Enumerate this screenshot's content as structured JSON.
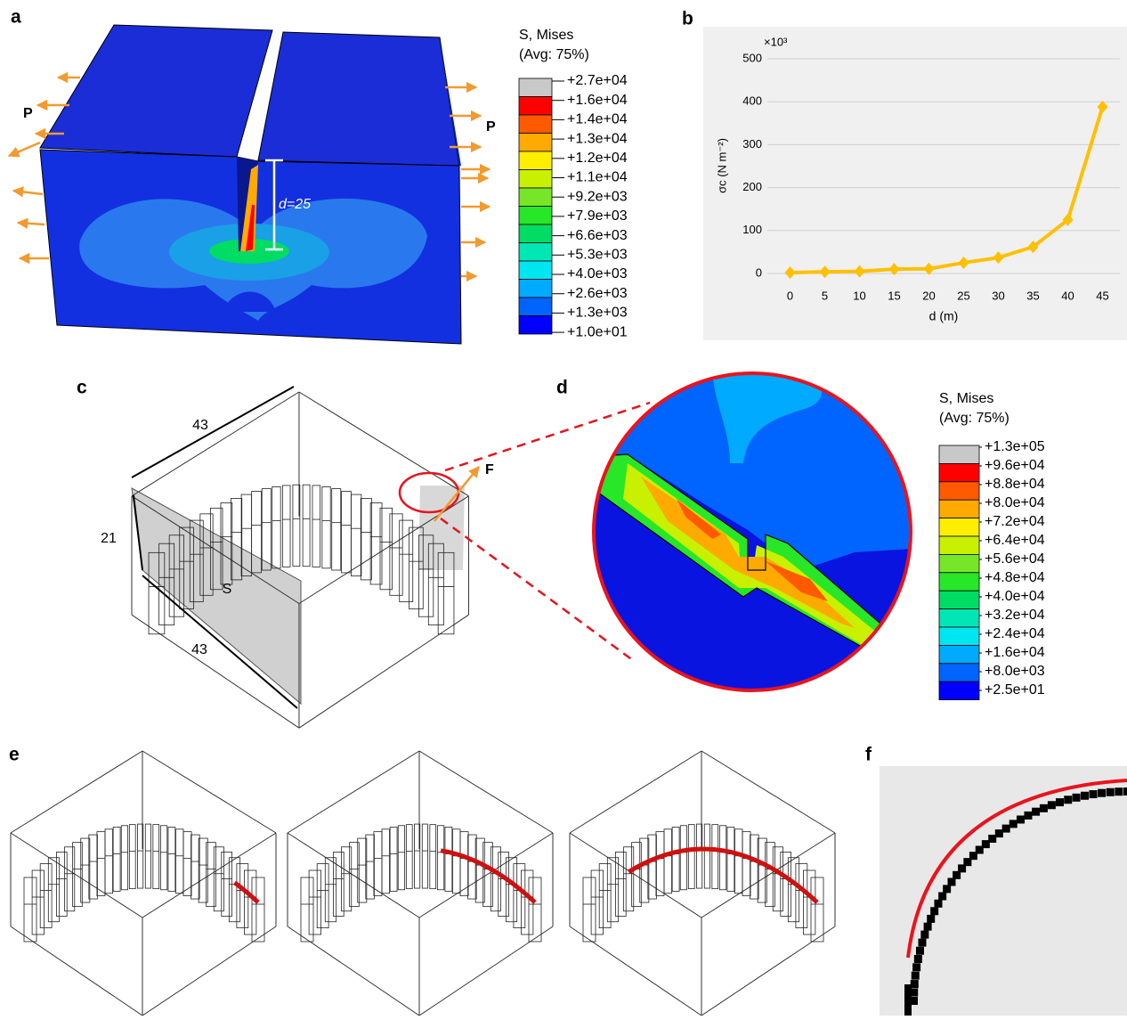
{
  "panel_labels": [
    "a",
    "b",
    "c",
    "d",
    "e",
    "f"
  ],
  "panel_a": {
    "load_labels": [
      "P",
      "P"
    ],
    "depth_label": "d=25",
    "legend": {
      "title": "S, Mises",
      "subtitle": "(Avg: 75%)",
      "labels": [
        "+2.7e+04",
        "+1.6e+04",
        "+1.4e+04",
        "+1.3e+04",
        "+1.2e+04",
        "+1.1e+04",
        "+9.2e+03",
        "+7.9e+03",
        "+6.6e+03",
        "+5.3e+03",
        "+4.0e+03",
        "+2.6e+03",
        "+1.3e+03",
        "+1.0e+01"
      ],
      "colors": [
        "#c8c8c8",
        "#ff0000",
        "#ff5a00",
        "#ffaa00",
        "#ffee00",
        "#c8f000",
        "#78e628",
        "#28e628",
        "#00dc64",
        "#00e6b4",
        "#00e6f0",
        "#00aaff",
        "#0064ff",
        "#0000ff"
      ]
    }
  },
  "chart_data": {
    "type": "line",
    "ylabel": "σc (N m⁻²)",
    "xlabel": "d (m)",
    "multiplier": "×10³",
    "categories": [
      "0",
      "5",
      "10",
      "15",
      "20",
      "25",
      "30",
      "35",
      "40",
      "45"
    ],
    "series": [
      {
        "color": "#ffc000",
        "values": [
          2,
          4,
          5,
          10,
          11,
          25,
          37,
          62,
          125,
          388
        ]
      }
    ],
    "ylim": [
      0,
      500
    ],
    "yticks": [
      0,
      100,
      200,
      300,
      400,
      500
    ],
    "grid": true
  },
  "panel_c": {
    "labels": [
      "43",
      "21",
      "43",
      "S",
      "F"
    ]
  },
  "panel_d": {
    "legend": {
      "title": "S, Mises",
      "subtitle": "(Avg: 75%)",
      "labels": [
        "+1.3e+05",
        "+9.6e+04",
        "+8.8e+04",
        "+8.0e+04",
        "+7.2e+04",
        "+6.4e+04",
        "+5.6e+04",
        "+4.8e+04",
        "+4.0e+04",
        "+3.2e+04",
        "+2.4e+04",
        "+1.6e+04",
        "+8.0e+03",
        "+2.5e+01"
      ],
      "colors": [
        "#c8c8c8",
        "#ff0000",
        "#ff5a00",
        "#ffaa00",
        "#ffee00",
        "#c8f000",
        "#78e628",
        "#28e628",
        "#00dc64",
        "#00e6b4",
        "#00e6f0",
        "#00aaff",
        "#0064ff",
        "#0000ff"
      ]
    }
  }
}
